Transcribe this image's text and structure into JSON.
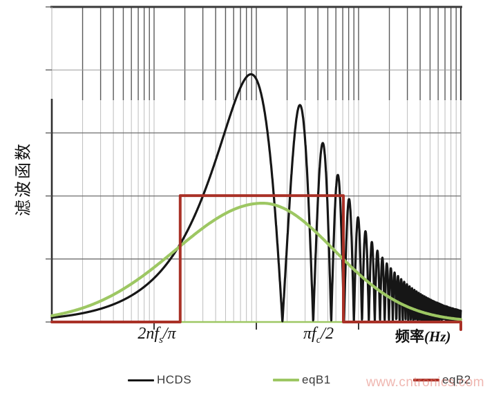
{
  "watermark": {
    "text": "www.cntronics.com",
    "color": "#e27a6f"
  },
  "chart_data": {
    "type": "line",
    "title": "",
    "x_axis": {
      "scale": "log",
      "decades": 4,
      "numeric_ticks_shown": false,
      "label_cjk": "频率",
      "label_latin": "(Hz)",
      "tick_labels": [
        {
          "pre": "2nf",
          "sub": "s",
          "post": "/π",
          "decade_position": 1
        },
        {
          "pre": "πf",
          "sub": "c",
          "post": "/2",
          "decade_position": 3
        }
      ]
    },
    "y_axis": {
      "label": "滤波函数",
      "scale": "linear",
      "divisions": 5,
      "numeric_ticks_shown": false
    },
    "series": [
      {
        "name": "HCDS",
        "color": "#161616",
        "shape": "oscillating sinc-like band-pass: |sin(pi*f/f0)| / sqrt(1+(f/fc)^2)",
        "params": {
          "f0": 180,
          "fc": 450,
          "peak_fraction": 0.8
        },
        "zeros_at": "f = 180*n",
        "sampled_peaks_f_vs_fraction": [
          [
            90,
            0.8
          ],
          [
            270,
            0.68
          ],
          [
            450,
            0.55
          ],
          [
            630,
            0.45
          ],
          [
            810,
            0.37
          ],
          [
            990,
            0.32
          ],
          [
            1170,
            0.28
          ],
          [
            2000,
            0.17
          ],
          [
            5000,
            0.07
          ],
          [
            10000,
            0.035
          ]
        ]
      },
      {
        "name": "eqB1",
        "color": "#9dc763",
        "shape": "smooth bell curve on log-frequency axis (asymmetric gaussian) plus zero baseline",
        "params": {
          "center_log10_f": 2.06,
          "sigma_left": 0.85,
          "sigma_right": 0.7,
          "peak_fraction": 0.377
        },
        "sampled_f_vs_fraction": [
          [
            1,
            0.02
          ],
          [
            10,
            0.1
          ],
          [
            40,
            0.25
          ],
          [
            115,
            0.377
          ],
          [
            300,
            0.31
          ],
          [
            710,
            0.2
          ],
          [
            2000,
            0.06
          ],
          [
            10000,
            0.01
          ]
        ]
      },
      {
        "name": "eqB2",
        "color": "#a93127",
        "shape": "rectangular band-pass window",
        "params": {
          "f_low": 18,
          "f_high": 710,
          "level_fraction": 0.401
        }
      }
    ],
    "legend": {
      "position": "bottom",
      "items": [
        "HCDS",
        "eqB1",
        "eqB2"
      ]
    },
    "grid": {
      "vertical": "logarithmic minor gridlines (2..9) across 4 decades; darker segments in top band",
      "horizontal": "5 equal divisions, unlabeled"
    }
  }
}
